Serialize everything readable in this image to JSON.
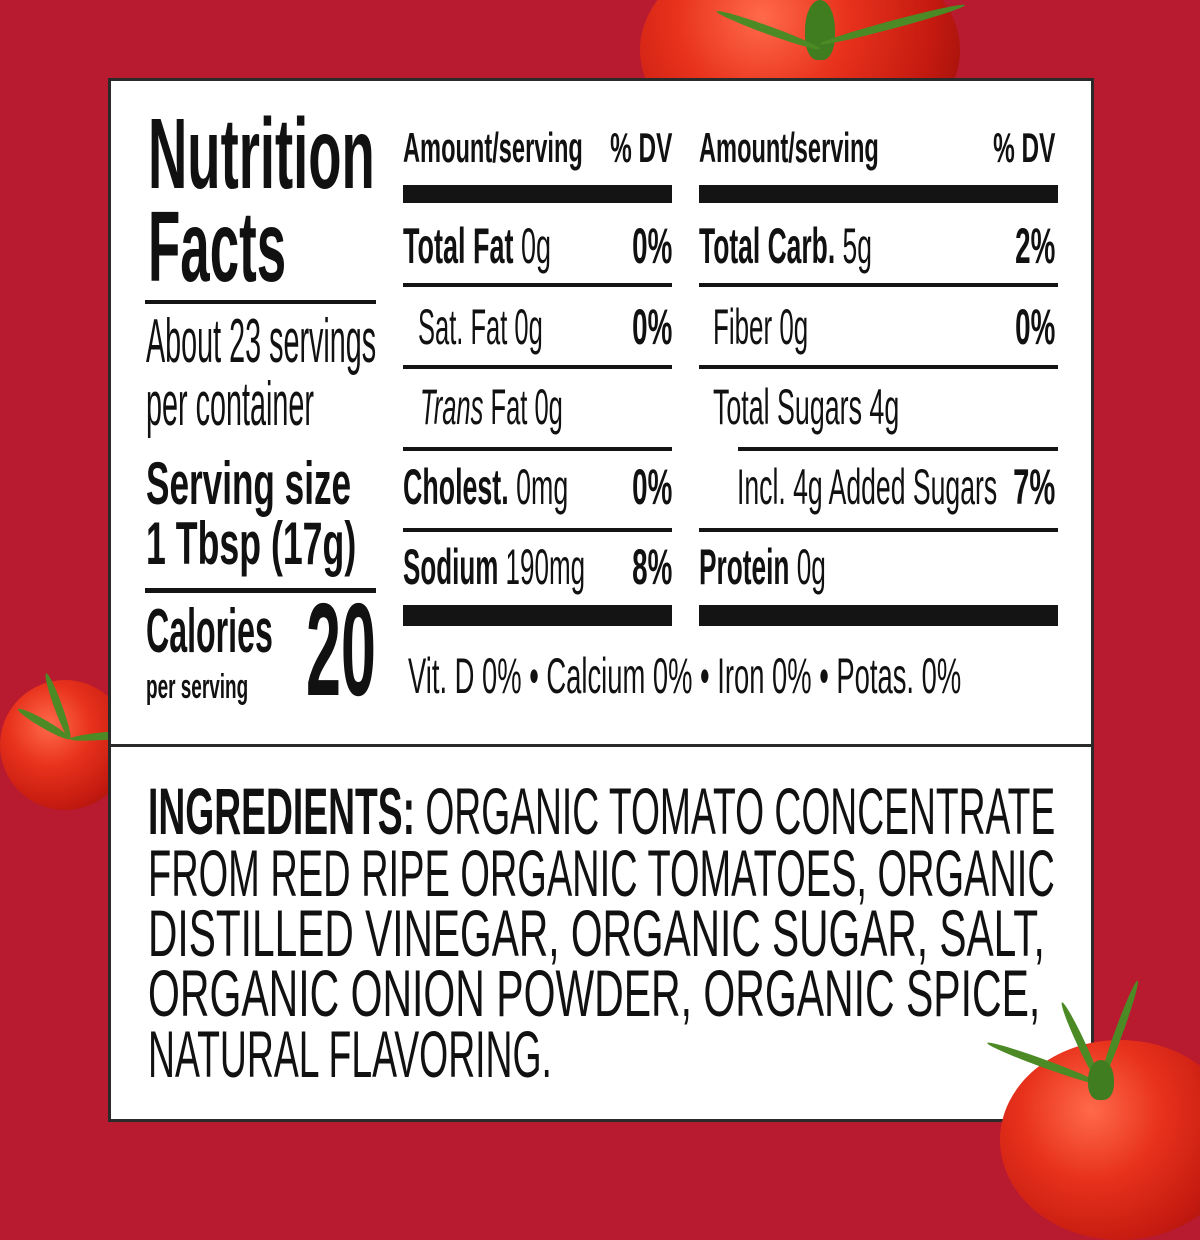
{
  "colors": {
    "background": "#b81a30",
    "panel": "#ffffff",
    "text": "#111111"
  },
  "decorations": [
    "tomato-top",
    "tomato-left",
    "tomato-bottom-right"
  ],
  "label": {
    "title_line1": "Nutrition",
    "title_line2": "Facts",
    "servings_line1": "About 23 servings",
    "servings_line2": "per container",
    "serving_size_label": "Serving size",
    "serving_size_value": "1 Tbsp (17g)",
    "calories_label": "Calories",
    "calories_sub": "per serving",
    "calories_value": "20",
    "left_header": {
      "amount": "Amount/serving",
      "dv": "% DV"
    },
    "right_header": {
      "amount": "Amount/serving",
      "dv": "% DV"
    },
    "left_rows": [
      {
        "name": "Total Fat",
        "amount": "0g",
        "dv": "0%"
      },
      {
        "name": "Sat. Fat",
        "amount": "0g",
        "dv": "0%"
      },
      {
        "name": "Trans",
        "name_rest": "Fat 0g",
        "dv": ""
      },
      {
        "name": "Cholest.",
        "amount": "0mg",
        "dv": "0%"
      },
      {
        "name": "Sodium",
        "amount": "190mg",
        "dv": "8%"
      }
    ],
    "right_rows": [
      {
        "name": "Total Carb.",
        "amount": "5g",
        "dv": "2%"
      },
      {
        "name": "Fiber 0g",
        "dv": "0%"
      },
      {
        "name": "Total Sugars 4g",
        "dv": ""
      },
      {
        "name": "Incl. 4g Added Sugars",
        "dv": "7%"
      },
      {
        "name": "Protein",
        "amount": "0g",
        "dv": ""
      }
    ],
    "vitamins": "Vit. D 0% • Calcium 0% • Iron 0% • Potas. 0%"
  },
  "ingredients": {
    "heading": "INGREDIENTS:",
    "lines": [
      " ORGANIC TOMATO CONCENTRATE",
      "FROM RED RIPE ORGANIC TOMATOES, ORGANIC",
      "DISTILLED VINEGAR, ORGANIC SUGAR, SALT,",
      "ORGANIC ONION POWDER, ORGANIC SPICE,",
      "NATURAL FLAVORING."
    ]
  }
}
